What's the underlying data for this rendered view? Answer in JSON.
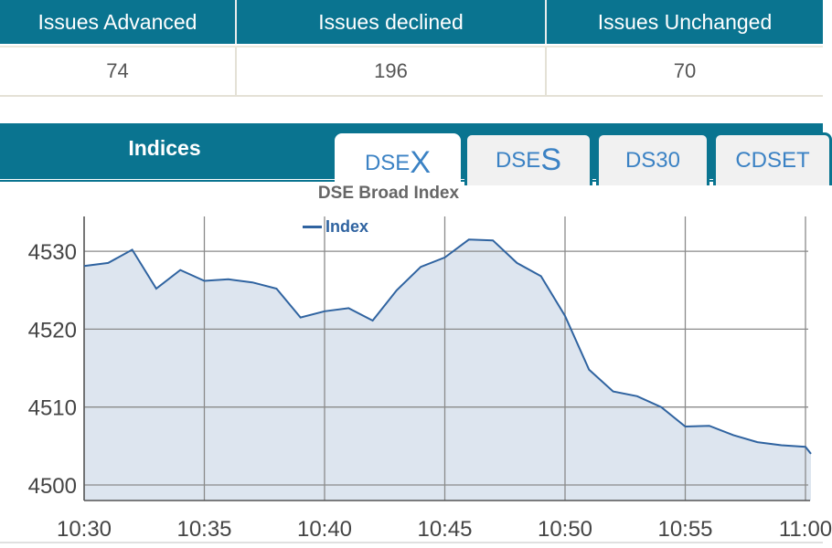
{
  "stats": {
    "headers": [
      "Issues Advanced",
      "Issues declined",
      "Issues Unchanged"
    ],
    "values": [
      "74",
      "196",
      "70"
    ],
    "header_bg": "#0a7490"
  },
  "indices": {
    "title": "Indices",
    "tabs": [
      {
        "prefix": "DSE",
        "suffix": "X",
        "active": true
      },
      {
        "prefix": "DSE",
        "suffix": "S",
        "active": false
      },
      {
        "prefix": "DS30",
        "suffix": "",
        "active": false
      },
      {
        "prefix": "CDSET",
        "suffix": "",
        "active": false
      }
    ]
  },
  "chart": {
    "title": "DSE Broad Index",
    "legend": "Index",
    "line_color": "#2f63a0",
    "fill_color": "#dde5ef"
  },
  "chart_data": {
    "type": "area",
    "title": "DSE Broad Index",
    "xlabel": "",
    "ylabel": "",
    "legend": [
      "Index"
    ],
    "legend_position": "top",
    "grid": true,
    "ylim": [
      4498,
      4534
    ],
    "yticks": [
      4500,
      4510,
      4520,
      4530
    ],
    "xticks": [
      "10:30",
      "10:35",
      "10:40",
      "10:45",
      "10:50",
      "10:55",
      "11:00"
    ],
    "x": [
      "10:30",
      "10:31",
      "10:32",
      "10:33",
      "10:34",
      "10:35",
      "10:36",
      "10:37",
      "10:38",
      "10:39",
      "10:40",
      "10:41",
      "10:42",
      "10:43",
      "10:44",
      "10:45",
      "10:46",
      "10:47",
      "10:48",
      "10:49",
      "10:50",
      "10:51",
      "10:52",
      "10:53",
      "10:54",
      "10:55",
      "10:56",
      "10:57",
      "10:58",
      "10:59",
      "11:00",
      "11:00+"
    ],
    "series": [
      {
        "name": "Index",
        "values": [
          4528.1,
          4528.5,
          4530.2,
          4525.2,
          4527.6,
          4526.2,
          4526.4,
          4526.0,
          4525.2,
          4521.5,
          4522.3,
          4522.7,
          4521.1,
          4525.0,
          4528.0,
          4529.2,
          4531.5,
          4531.4,
          4528.5,
          4526.8,
          4521.7,
          4514.8,
          4512.0,
          4511.4,
          4510.0,
          4507.5,
          4507.6,
          4506.4,
          4505.5,
          4505.1,
          4504.9,
          4504.0
        ]
      }
    ]
  }
}
